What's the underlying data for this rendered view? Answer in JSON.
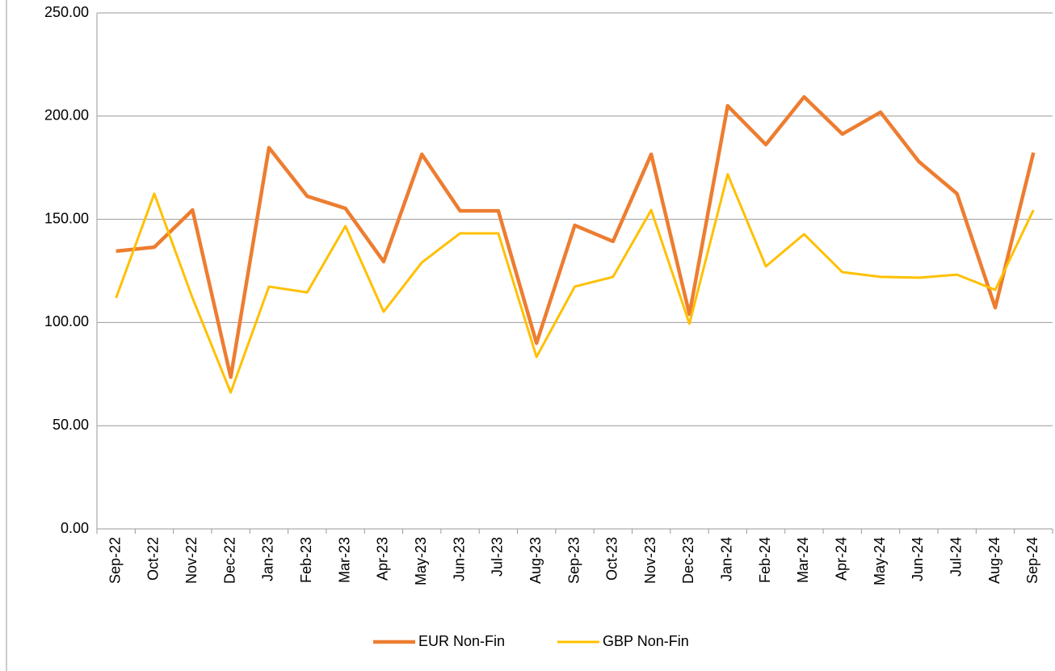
{
  "chart_data": {
    "type": "line",
    "categories": [
      "Sep-22",
      "Oct-22",
      "Nov-22",
      "Dec-22",
      "Jan-23",
      "Feb-23",
      "Mar-23",
      "Apr-23",
      "May-23",
      "Jun-23",
      "Jul-23",
      "Aug-23",
      "Sep-23",
      "Oct-23",
      "Nov-23",
      "Dec-23",
      "Jan-24",
      "Feb-24",
      "Mar-24",
      "Apr-24",
      "May-24",
      "Jun-24",
      "Jul-24",
      "Aug-24",
      "Sep-24"
    ],
    "series": [
      {
        "name": "EUR Non-Fin",
        "color": "#ed7d31",
        "values": [
          134.6,
          136.5,
          154.5,
          73.5,
          184.7,
          161.2,
          155.3,
          129.5,
          181.5,
          154.1,
          154.1,
          90,
          147.1,
          139.3,
          181.5,
          104,
          205,
          186.2,
          209.3,
          191.3,
          201.9,
          178,
          162.4,
          107.2,
          182.3
        ]
      },
      {
        "name": "GBP Non-Fin",
        "color": "#ffc000",
        "values": [
          111.9,
          162.4,
          111.9,
          66.1,
          117.4,
          114.6,
          146.7,
          105.2,
          129.1,
          143.2,
          143.2,
          83.3,
          117.4,
          122.1,
          154.5,
          99.4,
          171.8,
          127.2,
          142.8,
          124.4,
          122.1,
          121.7,
          123.2,
          115.8,
          154.5
        ]
      }
    ],
    "ylim": [
      0,
      250
    ],
    "yticks": [
      {
        "value": 0,
        "label": "0.00"
      },
      {
        "value": 50,
        "label": "50.00"
      },
      {
        "value": 100,
        "label": "100.00"
      },
      {
        "value": 150,
        "label": "150.00"
      },
      {
        "value": 200,
        "label": "200.00"
      },
      {
        "value": 250,
        "label": "250.00"
      }
    ],
    "grid": true,
    "legend": "bottom"
  }
}
